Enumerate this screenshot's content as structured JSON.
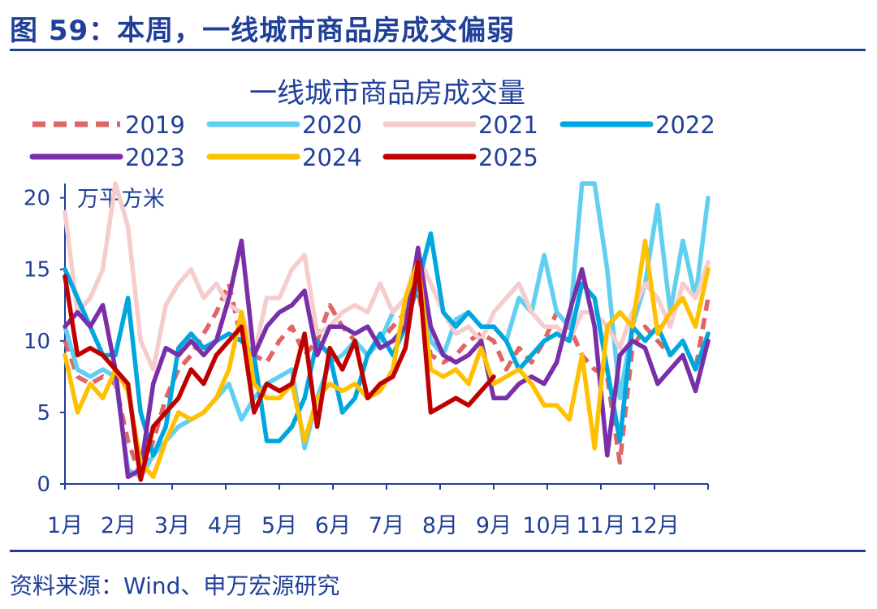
{
  "header": {
    "figure_title": "图 59：本周，一线城市商品房成交偏弱"
  },
  "footer": {
    "source": "资料来源：Wind、申万宏源研究"
  },
  "chart_data": {
    "type": "line",
    "title": "一线城市商品房成交量",
    "unit_label": "万平方米",
    "ylim": [
      0,
      21
    ],
    "y_ticks": [
      "0",
      "5",
      "10",
      "15",
      "20"
    ],
    "x_categories": [
      "1月",
      "2月",
      "3月",
      "4月",
      "5月",
      "6月",
      "7月",
      "8月",
      "9月",
      "10月",
      "11月",
      "12月"
    ],
    "x_range_weeks": [
      1,
      52
    ],
    "legend_placement": "top, two rows",
    "series": [
      {
        "name": "2019",
        "color": "#e06666",
        "dash": true,
        "x": [
          1,
          2,
          3,
          4,
          5,
          6,
          7,
          8,
          9,
          10,
          11,
          12,
          13,
          14,
          15,
          16,
          17,
          18,
          19,
          20,
          21,
          22,
          23,
          24,
          25,
          26,
          27,
          28,
          29,
          30,
          31,
          32,
          33,
          34,
          35,
          36,
          37,
          38,
          39,
          40,
          41,
          42,
          43,
          44,
          45,
          46,
          47,
          48,
          49,
          50,
          51,
          52
        ],
        "y": [
          10,
          7.5,
          7,
          7.5,
          7,
          3,
          0.5,
          3,
          6,
          8,
          9,
          10.5,
          12,
          14,
          10,
          9,
          8.5,
          10,
          11,
          9,
          10,
          12.5,
          11,
          10,
          9,
          10,
          11,
          12,
          13.5,
          9,
          8.5,
          9,
          10,
          10.5,
          10,
          8,
          9.5,
          8.5,
          10,
          12,
          11,
          9,
          8,
          7.5,
          1.5,
          9.5,
          11,
          10,
          9,
          10,
          8,
          13
        ]
      },
      {
        "name": "2020",
        "color": "#5fd0f0",
        "dash": false,
        "x": [
          1,
          2,
          3,
          4,
          5,
          6,
          7,
          8,
          9,
          10,
          11,
          12,
          13,
          14,
          15,
          16,
          17,
          18,
          19,
          20,
          21,
          22,
          23,
          24,
          25,
          26,
          27,
          28,
          29,
          30,
          31,
          32,
          33,
          34,
          35,
          36,
          37,
          38,
          39,
          40,
          41,
          42,
          43,
          44,
          45,
          46,
          47,
          48,
          49,
          50,
          51,
          52
        ],
        "y": [
          11,
          8,
          7.5,
          8,
          7.5,
          1,
          0.5,
          2,
          3,
          4,
          4.5,
          5,
          6,
          7,
          4.5,
          6,
          7,
          7.5,
          8,
          2.5,
          6,
          8.5,
          9,
          10,
          9,
          10,
          12,
          13,
          16,
          10,
          9,
          11.5,
          12,
          11,
          11,
          10,
          13,
          12,
          16,
          12,
          11,
          21,
          21,
          15,
          6,
          11,
          14,
          19.5,
          12,
          17,
          13,
          20
        ]
      },
      {
        "name": "2021",
        "color": "#f6cccc",
        "dash": false,
        "x": [
          1,
          2,
          3,
          4,
          5,
          6,
          7,
          8,
          9,
          10,
          11,
          12,
          13,
          14,
          15,
          16,
          17,
          18,
          19,
          20,
          21,
          22,
          23,
          24,
          25,
          26,
          27,
          28,
          29,
          30,
          31,
          32,
          33,
          34,
          35,
          36,
          37,
          38,
          39,
          40,
          41,
          42,
          43,
          44,
          45,
          46,
          47,
          48,
          49,
          50,
          51,
          52
        ],
        "y": [
          19,
          12,
          13,
          15,
          21,
          18,
          10,
          8,
          12.5,
          14,
          15,
          13,
          14,
          12.5,
          12,
          9,
          13,
          13,
          15,
          16,
          10.5,
          11,
          12,
          12.5,
          12,
          14,
          12,
          13,
          16,
          14,
          12,
          10.5,
          11,
          10,
          12,
          13,
          14,
          12,
          11,
          11,
          10,
          12,
          12,
          11,
          9.5,
          12,
          14,
          13,
          11,
          14,
          13,
          15.5
        ]
      },
      {
        "name": "2022",
        "color": "#00a6e0",
        "dash": false,
        "x": [
          1,
          2,
          3,
          4,
          5,
          6,
          7,
          8,
          9,
          10,
          11,
          12,
          13,
          14,
          15,
          16,
          17,
          18,
          19,
          20,
          21,
          22,
          23,
          24,
          25,
          26,
          27,
          28,
          29,
          30,
          31,
          32,
          33,
          34,
          35,
          36,
          37,
          38,
          39,
          40,
          41,
          42,
          43,
          44,
          45,
          46,
          47,
          48,
          49,
          50,
          51,
          52
        ],
        "y": [
          15,
          13,
          11,
          9,
          9,
          13,
          5,
          2,
          4,
          9.5,
          10.5,
          9.5,
          10,
          10.5,
          10,
          9,
          3,
          3,
          4,
          6,
          10,
          9,
          5,
          6,
          9,
          10.5,
          9,
          11,
          14,
          17.5,
          12,
          11,
          12,
          11,
          11,
          10,
          8,
          9,
          10,
          10.5,
          10,
          14,
          13,
          8,
          3,
          11,
          10,
          11,
          9,
          10,
          8,
          10.5
        ]
      },
      {
        "name": "2023",
        "color": "#7a2fa8",
        "dash": false,
        "x": [
          1,
          2,
          3,
          4,
          5,
          6,
          7,
          8,
          9,
          10,
          11,
          12,
          13,
          14,
          15,
          16,
          17,
          18,
          19,
          20,
          21,
          22,
          23,
          24,
          25,
          26,
          27,
          28,
          29,
          30,
          31,
          32,
          33,
          34,
          35,
          36,
          37,
          38,
          39,
          40,
          41,
          42,
          43,
          44,
          45,
          46,
          47,
          48,
          49,
          50,
          51,
          52
        ],
        "y": [
          11,
          12,
          11,
          12.5,
          8,
          0.5,
          1,
          7,
          9.5,
          9,
          10,
          9,
          10,
          13,
          17,
          9,
          11,
          12,
          12.5,
          13.5,
          9,
          11,
          11,
          10.5,
          11,
          9.5,
          10,
          11,
          16.5,
          11,
          9,
          8.5,
          9,
          10,
          6,
          6,
          7,
          7.5,
          7,
          8.5,
          12,
          15,
          11,
          2,
          9,
          10,
          9.5,
          7,
          8,
          9,
          6.5,
          10
        ]
      },
      {
        "name": "2024",
        "color": "#ffc000",
        "dash": false,
        "x": [
          1,
          2,
          3,
          4,
          5,
          6,
          7,
          8,
          9,
          10,
          11,
          12,
          13,
          14,
          15,
          16,
          17,
          18,
          19,
          20,
          21,
          22,
          23,
          24,
          25,
          26,
          27,
          28,
          29,
          30,
          31,
          32,
          33,
          34,
          35,
          36,
          37,
          38,
          39,
          40,
          41,
          42,
          43,
          44,
          45,
          46,
          47,
          48,
          49,
          50,
          51,
          52
        ],
        "y": [
          9,
          5,
          7,
          6,
          8,
          6.5,
          1.5,
          0.5,
          3,
          5,
          4.5,
          5,
          6,
          8,
          12,
          7,
          6,
          6,
          7,
          3,
          6,
          7,
          6.5,
          7,
          6,
          6.5,
          8,
          13,
          15.5,
          8,
          7.5,
          8,
          7,
          9.5,
          7,
          7.5,
          8,
          7,
          5.5,
          5.5,
          4.5,
          9,
          2.5,
          11,
          12,
          11,
          17,
          10.5,
          12,
          13,
          11,
          15
        ]
      },
      {
        "name": "2025",
        "color": "#c00000",
        "dash": false,
        "x": [
          1,
          2,
          3,
          4,
          5,
          6,
          7,
          8,
          9,
          10,
          11,
          12,
          13,
          14,
          15,
          16,
          17,
          18,
          19,
          20,
          21,
          22,
          23,
          24,
          25,
          26,
          27,
          28,
          29,
          30,
          31,
          32,
          33,
          34,
          35
        ],
        "y": [
          14.5,
          9,
          9.5,
          9,
          8,
          7,
          0.3,
          4,
          5,
          6,
          8,
          7,
          9,
          10,
          11,
          5,
          7,
          6.5,
          7,
          10.5,
          4,
          9.5,
          8,
          10,
          6,
          7,
          7.5,
          9.5,
          15.5,
          5,
          5.5,
          6,
          5.5,
          6.5,
          7.5
        ]
      }
    ]
  }
}
